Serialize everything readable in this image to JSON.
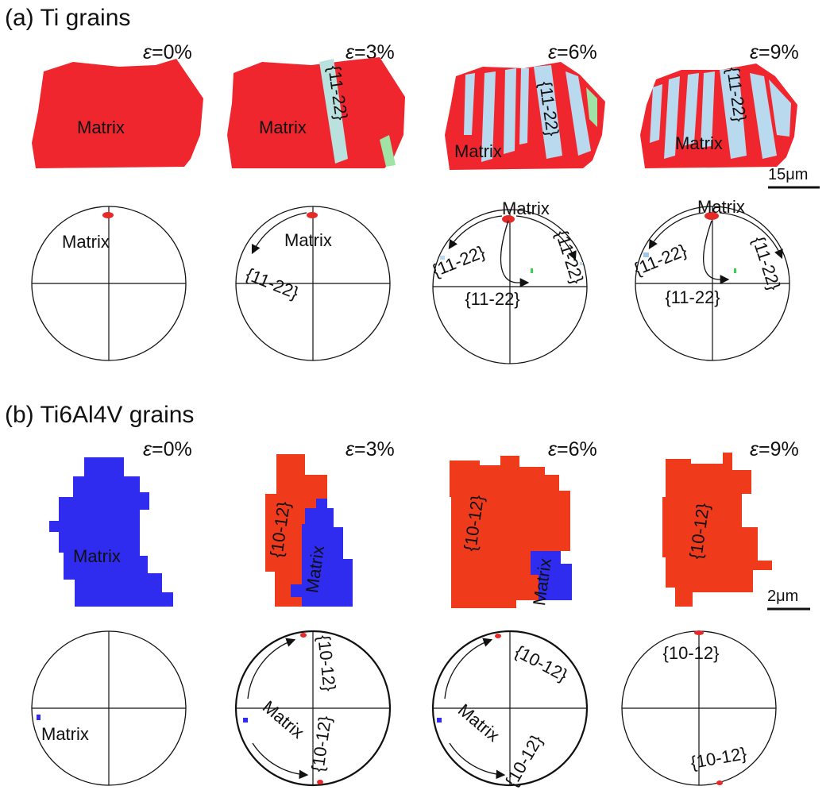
{
  "section_a": {
    "title": "(a) Ti grains"
  },
  "section_b": {
    "title": "(b) Ti6Al4V grains"
  },
  "strain_symbol": "ε",
  "strains": [
    "=0%",
    "=3%",
    "=6%",
    "=9%"
  ],
  "labels": {
    "matrix": "Matrix",
    "twin_ti": "{11-22}",
    "twin_tav": "{10-12}"
  },
  "scale_bars": {
    "a": "15μm",
    "b": "2μm"
  },
  "colors": {
    "matrix_red": "#f0262e",
    "twin_ice": "#b9d9ee",
    "twin_green": "#8fe39b",
    "matrix_blue": "#2f2cf0",
    "twin_orange": "#f03a1c"
  }
}
